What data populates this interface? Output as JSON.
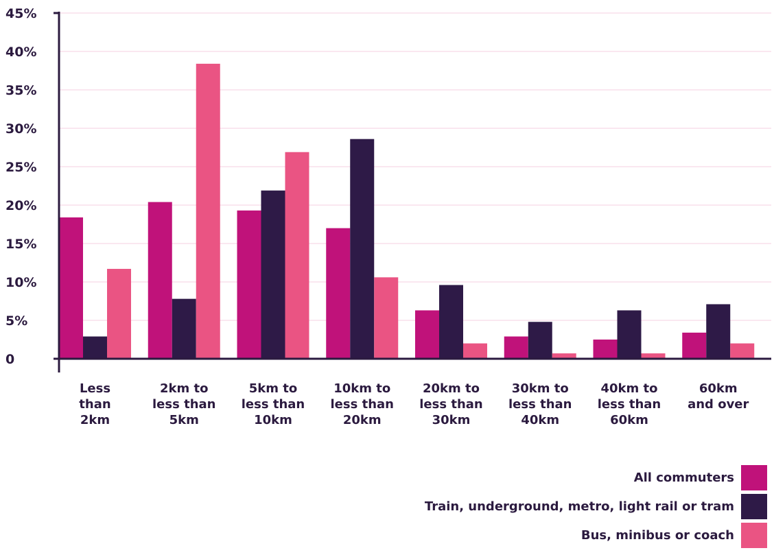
{
  "chart_data": {
    "type": "bar",
    "categories": [
      "Less than 2km",
      "2km to less than 5km",
      "5km to less than 10km",
      "10km to less than 20km",
      "20km to less than 30km",
      "30km to less than 40km",
      "40km to less than 60km",
      "60km and over"
    ],
    "category_lines": [
      [
        "Less",
        "than",
        "2km"
      ],
      [
        "2km to",
        "less than",
        "5km"
      ],
      [
        "5km to",
        "less than",
        "10km"
      ],
      [
        "10km to",
        "less than",
        "20km"
      ],
      [
        "20km to",
        "less than",
        "30km"
      ],
      [
        "30km to",
        "less than",
        "40km"
      ],
      [
        "40km to",
        "less than",
        "60km"
      ],
      [
        "60km",
        "and over"
      ]
    ],
    "series": [
      {
        "name": "All commuters",
        "color": "#c0127a",
        "values": [
          18.4,
          20.4,
          19.3,
          17.0,
          6.3,
          2.9,
          2.5,
          3.4
        ]
      },
      {
        "name": "Train, underground, metro, light rail or tram",
        "color": "#2e1a47",
        "values": [
          2.9,
          7.8,
          21.9,
          28.6,
          9.6,
          4.8,
          6.3,
          7.1
        ]
      },
      {
        "name": "Bus, minibus or coach",
        "color": "#ea5483",
        "values": [
          11.7,
          38.4,
          26.9,
          10.6,
          2.0,
          0.7,
          0.7,
          2.0
        ]
      }
    ],
    "y_ticks": [
      "0",
      "5%",
      "10%",
      "15%",
      "20%",
      "25%",
      "30%",
      "35%",
      "40%",
      "45%"
    ],
    "ylim": [
      0,
      45
    ],
    "grid": true,
    "legend_position": "bottom-right",
    "title": "",
    "xlabel": "",
    "ylabel": ""
  }
}
